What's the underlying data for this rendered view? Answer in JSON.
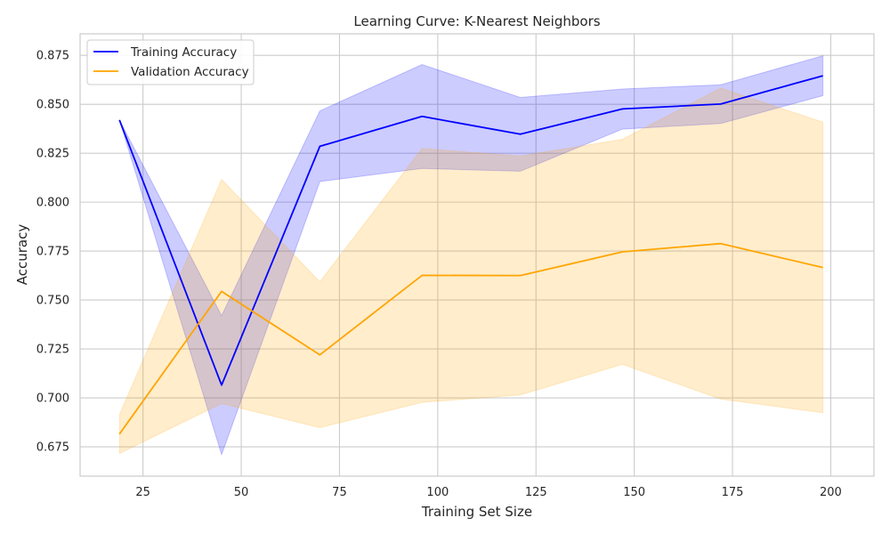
{
  "chart_data": {
    "type": "line",
    "title": "Learning Curve: K-Nearest Neighbors",
    "xlabel": "Training Set Size",
    "ylabel": "Accuracy",
    "xlim": [
      9,
      211
    ],
    "ylim": [
      0.66,
      0.886
    ],
    "x_ticks": [
      25,
      50,
      75,
      100,
      125,
      150,
      175,
      200
    ],
    "y_ticks": [
      0.675,
      0.7,
      0.725,
      0.75,
      0.775,
      0.8,
      0.825,
      0.85,
      0.875
    ],
    "x_tick_labels": [
      "25",
      "50",
      "75",
      "100",
      "125",
      "150",
      "175",
      "200"
    ],
    "y_tick_labels": [
      "0.675",
      "0.700",
      "0.725",
      "0.750",
      "0.775",
      "0.800",
      "0.825",
      "0.850",
      "0.875"
    ],
    "grid": true,
    "legend_position": "top-left",
    "x": [
      19,
      45,
      70,
      96,
      121,
      147,
      172,
      198
    ],
    "series": [
      {
        "name": "Training Accuracy",
        "color": "#0000ff",
        "values": [
          0.842,
          0.7065,
          0.8285,
          0.8438,
          0.8347,
          0.8476,
          0.8501,
          0.8646
        ],
        "band_lower": [
          0.842,
          0.671,
          0.8105,
          0.8172,
          0.8158,
          0.8373,
          0.8402,
          0.8544
        ],
        "band_upper": [
          0.842,
          0.742,
          0.8466,
          0.8703,
          0.8535,
          0.8578,
          0.86,
          0.8748
        ]
      },
      {
        "name": "Validation Accuracy",
        "color": "#ffa500",
        "values": [
          0.6815,
          0.7544,
          0.722,
          0.7626,
          0.7625,
          0.7746,
          0.7788,
          0.7666
        ],
        "band_lower": [
          0.6716,
          0.6971,
          0.6848,
          0.6977,
          0.7015,
          0.7171,
          0.6994,
          0.6924
        ],
        "band_upper": [
          0.6914,
          0.8116,
          0.7593,
          0.8274,
          0.8235,
          0.8321,
          0.8582,
          0.8409
        ]
      }
    ]
  }
}
